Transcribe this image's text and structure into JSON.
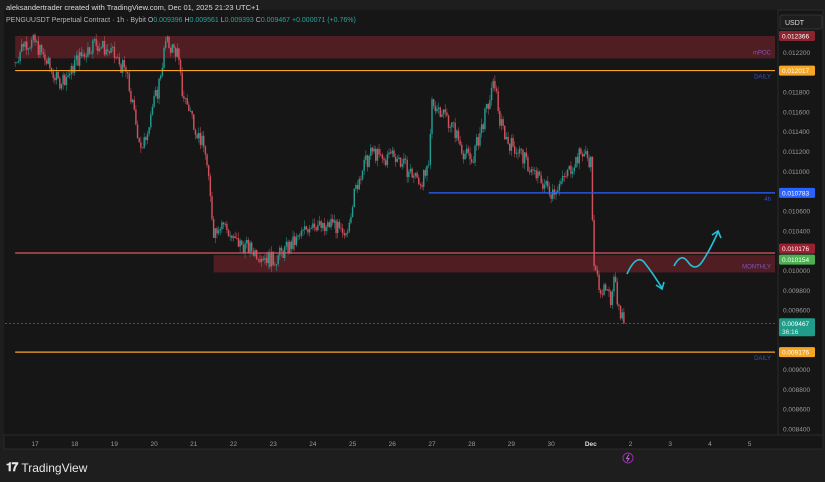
{
  "header": {
    "credit": "aleksandertrader created with TradingView.com, Dec 01, 2025 21:23 UTC+1",
    "symbol": "PENGUUSDT Perpetual Contract · 1h · Bybit",
    "open_label": "O",
    "open": "0.009396",
    "high_label": "H",
    "high": "0.009561",
    "low_label": "L",
    "low": "0.009393",
    "close_label": "C",
    "close": "0.009467",
    "change": "+0.000071 (+0.76%)"
  },
  "brand": "TradingView",
  "currency": "USDT",
  "colors": {
    "background": "#161616",
    "up": "#26a69a",
    "down": "#e05561",
    "daily": "#f5a623",
    "h4": "#2962ff",
    "zone": "#5a1f26",
    "projection": "#22c3d6",
    "current": "#1f9d8a",
    "label_text": "#7e57c2"
  },
  "chart_data": {
    "type": "candlestick",
    "interval": "1h",
    "ylim": [
      0.0083,
      0.01262
    ],
    "y_ticks": [
      "0.012200",
      "0.011800",
      "0.011600",
      "0.011400",
      "0.011200",
      "0.011000",
      "0.010600",
      "0.010400",
      "0.010000",
      "0.009800",
      "0.009600",
      "0.009000",
      "0.008800",
      "0.008600",
      "0.008400"
    ],
    "x_ticks": [
      {
        "date": "2025-11-17",
        "label": "17"
      },
      {
        "date": "2025-11-18",
        "label": "18"
      },
      {
        "date": "2025-11-19",
        "label": "19"
      },
      {
        "date": "2025-11-20",
        "label": "20"
      },
      {
        "date": "2025-11-21",
        "label": "21"
      },
      {
        "date": "2025-11-22",
        "label": "22"
      },
      {
        "date": "2025-11-23",
        "label": "23"
      },
      {
        "date": "2025-11-24",
        "label": "24"
      },
      {
        "date": "2025-11-25",
        "label": "25"
      },
      {
        "date": "2025-11-26",
        "label": "26"
      },
      {
        "date": "2025-11-27",
        "label": "27"
      },
      {
        "date": "2025-11-28",
        "label": "28"
      },
      {
        "date": "2025-11-29",
        "label": "29"
      },
      {
        "date": "2025-11-30",
        "label": "30"
      },
      {
        "date": "2025-12-01",
        "label": "Dec"
      },
      {
        "date": "2025-12-02",
        "label": "2"
      },
      {
        "date": "2025-12-03",
        "label": "3"
      },
      {
        "date": "2025-12-04",
        "label": "4"
      },
      {
        "date": "2025-12-05",
        "label": "5"
      }
    ],
    "approx_close_path": [
      [
        "2025-11-16T12:00",
        0.0121
      ],
      [
        "2025-11-16T17:00",
        0.0123
      ],
      [
        "2025-11-17T00:00",
        0.0123
      ],
      [
        "2025-11-17T07:00",
        0.0121
      ],
      [
        "2025-11-17T14:00",
        0.0119
      ],
      [
        "2025-11-17T22:00",
        0.012
      ],
      [
        "2025-11-18T00:00",
        0.0121
      ],
      [
        "2025-11-18T12:00",
        0.0123
      ],
      [
        "2025-11-18T22:00",
        0.0122
      ],
      [
        "2025-11-19T07:00",
        0.012
      ],
      [
        "2025-11-19T14:00",
        0.0114
      ],
      [
        "2025-11-19T17:00",
        0.0112
      ],
      [
        "2025-11-19T22:00",
        0.0116
      ],
      [
        "2025-11-20T02:00",
        0.0118
      ],
      [
        "2025-11-20T07:00",
        0.0123
      ],
      [
        "2025-11-20T14:00",
        0.0122
      ],
      [
        "2025-11-20T17:00",
        0.0118
      ],
      [
        "2025-11-20T22:00",
        0.0116
      ],
      [
        "2025-11-21T02:00",
        0.0114
      ],
      [
        "2025-11-21T07:00",
        0.0112
      ],
      [
        "2025-11-21T12:00",
        0.0104
      ],
      [
        "2025-11-21T17:00",
        0.0105
      ],
      [
        "2025-11-22T00:00",
        0.0103
      ],
      [
        "2025-11-22T12:00",
        0.0102
      ],
      [
        "2025-11-23T00:00",
        0.0101
      ],
      [
        "2025-11-23T07:00",
        0.0102
      ],
      [
        "2025-11-23T14:00",
        0.0103
      ],
      [
        "2025-11-24T00:00",
        0.0105
      ],
      [
        "2025-11-24T07:00",
        0.0104
      ],
      [
        "2025-11-24T12:00",
        0.0105
      ],
      [
        "2025-11-24T19:00",
        0.0103
      ],
      [
        "2025-11-25T00:00",
        0.0107
      ],
      [
        "2025-11-25T05:00",
        0.011
      ],
      [
        "2025-11-25T12:00",
        0.0112
      ],
      [
        "2025-11-25T19:00",
        0.0111
      ],
      [
        "2025-11-26T00:00",
        0.0112
      ],
      [
        "2025-11-26T10:00",
        0.011
      ],
      [
        "2025-11-26T17:00",
        0.0109
      ],
      [
        "2025-11-26T22:00",
        0.011
      ],
      [
        "2025-11-27T00:00",
        0.0117
      ],
      [
        "2025-11-27T07:00",
        0.0116
      ],
      [
        "2025-11-27T14:00",
        0.0114
      ],
      [
        "2025-11-27T19:00",
        0.0112
      ],
      [
        "2025-11-28T00:00",
        0.0111
      ],
      [
        "2025-11-28T07:00",
        0.0115
      ],
      [
        "2025-11-28T14:00",
        0.0119
      ],
      [
        "2025-11-28T17:00",
        0.0115
      ],
      [
        "2025-11-28T22:00",
        0.0113
      ],
      [
        "2025-11-29T05:00",
        0.0112
      ],
      [
        "2025-11-29T12:00",
        0.011
      ],
      [
        "2025-11-30T00:00",
        0.0108
      ],
      [
        "2025-11-30T07:00",
        0.0109
      ],
      [
        "2025-11-30T14:00",
        0.0111
      ],
      [
        "2025-11-30T19:00",
        0.0112
      ],
      [
        "2025-12-01T00:00",
        0.0111
      ],
      [
        "2025-12-01T02:00",
        0.01
      ],
      [
        "2025-12-01T07:00",
        0.0098
      ],
      [
        "2025-12-01T12:00",
        0.0097
      ],
      [
        "2025-12-01T14:00",
        0.01
      ],
      [
        "2025-12-01T17:00",
        0.0096
      ],
      [
        "2025-12-01T20:00",
        0.009467
      ]
    ],
    "levels": [
      {
        "label": "mPOC",
        "price_label": "0.012366",
        "type": "zone",
        "top": 0.012366,
        "bottom": 0.01214,
        "from": "2025-11-16T12:00"
      },
      {
        "label": "DAILY",
        "price_label": "0.012017",
        "type": "line",
        "price": 0.012017,
        "color": "daily",
        "from": "2025-11-16T12:00"
      },
      {
        "label": "4h",
        "price_label": "0.010783",
        "type": "line",
        "price": 0.010783,
        "color": "h4",
        "from": "2025-11-26T22:00"
      },
      {
        "label": "",
        "price_label": "0.010176",
        "type": "line",
        "price": 0.010176,
        "color": "down",
        "from": "2025-11-16T12:00"
      },
      {
        "label": "MONTHLY",
        "price_label": "0.010154",
        "type": "zone",
        "top": 0.010154,
        "bottom": 0.00998,
        "from": "2025-11-21T12:00"
      },
      {
        "label": "DAILY",
        "price_label": "0.009176",
        "type": "line",
        "price": 0.009176,
        "color": "daily",
        "from": "2025-11-16T12:00"
      }
    ],
    "current_price": {
      "price": 0.009467,
      "label": "0.009467",
      "countdown": "36:16"
    }
  }
}
